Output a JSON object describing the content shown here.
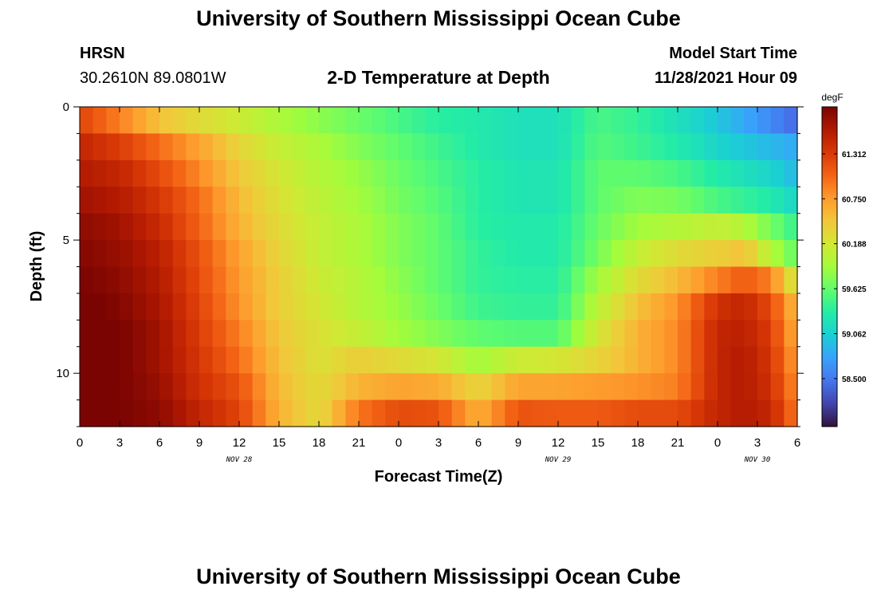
{
  "header": {
    "title": "University of Southern Mississippi Ocean Cube",
    "station": "HRSN",
    "coords": "30.2610N  89.0801W",
    "chart_title": "2-D Temperature at Depth",
    "model_start_label": "Model Start Time",
    "model_start_value": "11/28/2021 Hour 09",
    "footer_title": "University of Southern Mississippi Ocean Cube"
  },
  "colors": {
    "colormap": [
      "#30123b",
      "#4145ab",
      "#4675ed",
      "#39a2fc",
      "#1bcfd4",
      "#24eca6",
      "#61fc6c",
      "#a4fc3b",
      "#d1e834",
      "#f3c63a",
      "#fe9b2d",
      "#f36315",
      "#d93806",
      "#b11901",
      "#7a0402"
    ]
  },
  "chart_data": {
    "type": "heatmap",
    "title": "2-D Temperature at Depth",
    "xlabel": "Forecast Time(Z)",
    "ylabel": "Depth (ft)",
    "x_tick_labels": [
      "0",
      "3",
      "6",
      "9",
      "12",
      "15",
      "18",
      "21",
      "0",
      "3",
      "6",
      "9",
      "12",
      "15",
      "18",
      "21",
      "0",
      "3",
      "6"
    ],
    "x_date_labels": [
      {
        "label": "NOV 28",
        "hour_index": 12
      },
      {
        "label": "NOV 29",
        "hour_index": 36
      },
      {
        "label": "NOV 30",
        "hour_index": 51
      }
    ],
    "x_range_hours": [
      0,
      54
    ],
    "y_tick_labels": [
      "0",
      "5",
      "10"
    ],
    "y_range_ft": [
      0,
      12
    ],
    "y_ticks": [
      0,
      5,
      10
    ],
    "colorbar": {
      "unit": "degF",
      "labels": [
        "61.312",
        "60.750",
        "60.188",
        "59.625",
        "59.062",
        "58.500"
      ],
      "label_values": [
        61.312,
        60.75,
        60.188,
        59.625,
        59.062,
        58.5
      ],
      "range": [
        57.9,
        61.9
      ]
    },
    "depth_layers_ft": [
      0.5,
      1.5,
      2.5,
      3.5,
      4.5,
      5.5,
      6.5,
      7.5,
      8.5,
      9.5,
      10.5,
      11.5
    ],
    "keyframe_hours": [
      0,
      3,
      6,
      9,
      12,
      15,
      18,
      21,
      24,
      27,
      30,
      33,
      36,
      39,
      42,
      45,
      48,
      50,
      52,
      54
    ],
    "keyframe_values_degF": [
      [
        61.25,
        60.9,
        60.5,
        60.3,
        60.15,
        59.95,
        59.8,
        59.65,
        59.5,
        59.35,
        59.3,
        59.2,
        59.2,
        59.5,
        59.4,
        59.2,
        59.0,
        58.8,
        58.6,
        58.4
      ],
      [
        61.5,
        61.3,
        61.0,
        60.7,
        60.35,
        60.1,
        59.95,
        59.75,
        59.6,
        59.45,
        59.3,
        59.2,
        59.2,
        59.55,
        59.45,
        59.3,
        59.1,
        59.0,
        58.9,
        58.8
      ],
      [
        61.6,
        61.5,
        61.2,
        60.85,
        60.45,
        60.2,
        60.0,
        59.85,
        59.65,
        59.5,
        59.35,
        59.25,
        59.25,
        59.6,
        59.6,
        59.5,
        59.3,
        59.2,
        59.1,
        58.9
      ],
      [
        61.7,
        61.6,
        61.35,
        61.0,
        60.55,
        60.25,
        60.05,
        59.9,
        59.7,
        59.55,
        59.35,
        59.25,
        59.25,
        59.6,
        59.75,
        59.7,
        59.5,
        59.4,
        59.3,
        59.1
      ],
      [
        61.8,
        61.7,
        61.45,
        61.05,
        60.6,
        60.3,
        60.1,
        59.95,
        59.75,
        59.6,
        59.35,
        59.3,
        59.3,
        59.65,
        59.9,
        60.0,
        60.1,
        60.0,
        59.7,
        59.4
      ],
      [
        61.85,
        61.75,
        61.55,
        61.15,
        60.7,
        60.35,
        60.1,
        59.95,
        59.75,
        59.6,
        59.4,
        59.3,
        59.3,
        59.7,
        60.1,
        60.3,
        60.4,
        60.5,
        60.0,
        59.6
      ],
      [
        61.9,
        61.8,
        61.6,
        61.2,
        60.75,
        60.4,
        60.15,
        60.0,
        59.8,
        59.6,
        59.4,
        59.35,
        59.35,
        59.9,
        60.3,
        60.55,
        60.9,
        61.1,
        60.9,
        60.1
      ],
      [
        61.95,
        61.85,
        61.65,
        61.25,
        60.8,
        60.4,
        60.2,
        60.0,
        59.85,
        59.65,
        59.45,
        59.4,
        59.4,
        60.05,
        60.5,
        60.8,
        61.4,
        61.5,
        61.2,
        60.5
      ],
      [
        61.95,
        61.9,
        61.7,
        61.3,
        60.9,
        60.45,
        60.25,
        60.1,
        59.9,
        59.75,
        59.6,
        59.55,
        59.55,
        60.2,
        60.6,
        60.85,
        61.5,
        61.55,
        61.3,
        60.6
      ],
      [
        61.95,
        61.9,
        61.7,
        61.35,
        61.0,
        60.5,
        60.25,
        60.4,
        60.3,
        60.2,
        59.9,
        60.15,
        60.2,
        60.35,
        60.6,
        60.85,
        61.5,
        61.6,
        61.35,
        60.7
      ],
      [
        61.95,
        61.9,
        61.75,
        61.4,
        61.15,
        60.55,
        60.3,
        60.6,
        60.7,
        60.65,
        60.35,
        60.7,
        60.7,
        60.75,
        60.8,
        60.9,
        61.5,
        61.6,
        61.4,
        60.8
      ],
      [
        61.95,
        61.9,
        61.8,
        61.5,
        61.25,
        60.6,
        60.3,
        60.95,
        61.2,
        61.15,
        60.6,
        61.15,
        61.1,
        61.1,
        61.2,
        61.2,
        61.5,
        61.6,
        61.5,
        60.9
      ]
    ]
  }
}
